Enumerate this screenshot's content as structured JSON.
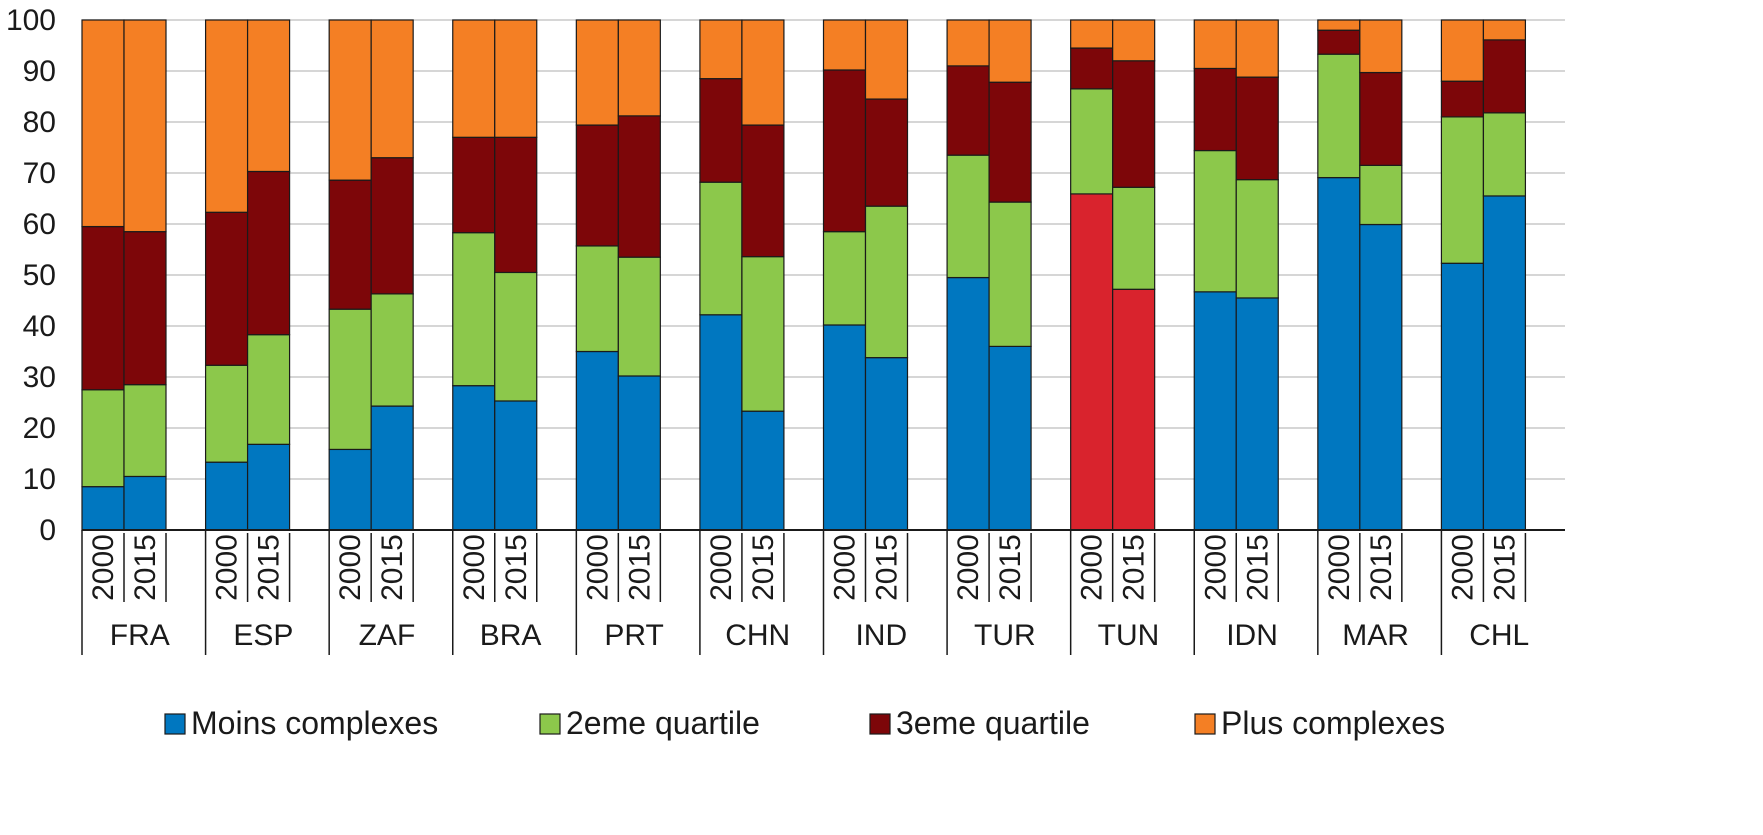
{
  "chart_data": {
    "type": "bar",
    "stacked": true,
    "ylim": [
      0,
      100
    ],
    "yticks": [
      0,
      10,
      20,
      30,
      40,
      50,
      60,
      70,
      80,
      90,
      100
    ],
    "grid": true,
    "legend_position": "bottom",
    "groups": [
      {
        "label": "FRA",
        "bars": [
          {
            "year": "2000",
            "values": [
              8.5,
              19,
              32,
              40.5
            ]
          },
          {
            "year": "2015",
            "values": [
              10.5,
              18,
              30,
              41.5
            ]
          }
        ]
      },
      {
        "label": "ESP",
        "bars": [
          {
            "year": "2000",
            "values": [
              13.3,
              19,
              30,
              37.7
            ]
          },
          {
            "year": "2015",
            "values": [
              16.8,
              21.5,
              32,
              29.7
            ]
          }
        ]
      },
      {
        "label": "ZAF",
        "bars": [
          {
            "year": "2000",
            "values": [
              15.8,
              27.5,
              25.3,
              31.4
            ]
          },
          {
            "year": "2015",
            "values": [
              24.3,
              22,
              26.7,
              27
            ]
          }
        ]
      },
      {
        "label": "BRA",
        "bars": [
          {
            "year": "2000",
            "values": [
              28.3,
              30,
              18.7,
              23
            ]
          },
          {
            "year": "2015",
            "values": [
              25.3,
              25.2,
              26.5,
              23
            ]
          }
        ]
      },
      {
        "label": "PRT",
        "bars": [
          {
            "year": "2000",
            "values": [
              35,
              20.7,
              23.7,
              20.6
            ]
          },
          {
            "year": "2015",
            "values": [
              30.2,
              23.3,
              27.7,
              18.8
            ]
          }
        ]
      },
      {
        "label": "CHN",
        "bars": [
          {
            "year": "2000",
            "values": [
              42.2,
              26,
              20.3,
              11.5
            ]
          },
          {
            "year": "2015",
            "values": [
              23.3,
              30.3,
              25.8,
              20.6
            ]
          }
        ]
      },
      {
        "label": "IND",
        "bars": [
          {
            "year": "2000",
            "values": [
              40.2,
              18.3,
              31.7,
              9.8
            ]
          },
          {
            "year": "2015",
            "values": [
              33.8,
              29.7,
              21,
              15.5
            ]
          }
        ]
      },
      {
        "label": "TUR",
        "bars": [
          {
            "year": "2000",
            "values": [
              49.5,
              24,
              17.5,
              9
            ]
          },
          {
            "year": "2015",
            "values": [
              36,
              28.3,
              23.5,
              12.2
            ]
          }
        ]
      },
      {
        "label": "TUN",
        "bars": [
          {
            "year": "2000",
            "values": [
              65.9,
              20.6,
              8,
              5.5
            ]
          },
          {
            "year": "2015",
            "values": [
              47.2,
              20,
              24.8,
              8
            ]
          }
        ]
      },
      {
        "label": "IDN",
        "bars": [
          {
            "year": "2000",
            "values": [
              46.7,
              27.7,
              16.1,
              9.5
            ]
          },
          {
            "year": "2015",
            "values": [
              45.5,
              23.2,
              20.1,
              11.2
            ]
          }
        ]
      },
      {
        "label": "MAR",
        "bars": [
          {
            "year": "2000",
            "values": [
              69.1,
              24.2,
              4.7,
              2
            ]
          },
          {
            "year": "2015",
            "values": [
              59.9,
              11.6,
              18.2,
              10.3
            ]
          }
        ]
      },
      {
        "label": "CHL",
        "bars": [
          {
            "year": "2000",
            "values": [
              52.3,
              28.7,
              7,
              12
            ]
          },
          {
            "year": "2015",
            "values": [
              65.5,
              16.3,
              14.3,
              3.9
            ]
          }
        ]
      }
    ],
    "series": [
      {
        "name": "Moins complexes",
        "color": "#0077c0"
      },
      {
        "name": "2eme quartile",
        "color": "#8cc84b"
      },
      {
        "name": "3eme quartile",
        "color": "#7d0609"
      },
      {
        "name": "Plus complexes",
        "color": "#f47f24"
      }
    ],
    "highlight": {
      "group": "TUN",
      "series_index": 0,
      "color": "#d9232d"
    }
  }
}
